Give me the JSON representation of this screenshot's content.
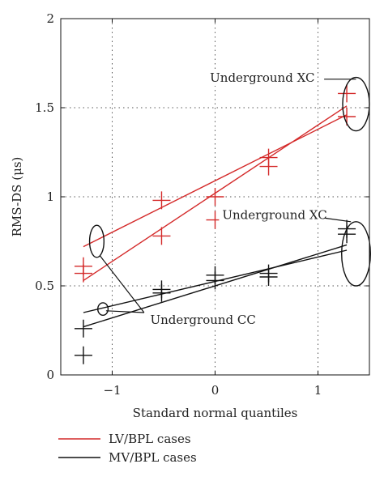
{
  "chart_data": {
    "type": "scatter",
    "xlabel": "Standard normal quantiles",
    "ylabel": "RMS-DS (μs)",
    "xlim": [
      -1.5,
      1.5
    ],
    "ylim": [
      0,
      2
    ],
    "x_ticks": [
      -1,
      0,
      1
    ],
    "x_tick_labels": [
      "−1",
      "0",
      "1"
    ],
    "y_ticks": [
      0,
      0.5,
      1,
      1.5,
      2
    ],
    "y_tick_labels": [
      "0",
      "0.5",
      "1",
      "1.5",
      "2"
    ],
    "grid": true,
    "legend_position": "below",
    "series": [
      {
        "name": "LV/BPL cases",
        "color": "#d42a2a",
        "marker": "plus",
        "points": [
          [
            -1.28,
            0.57
          ],
          [
            -1.28,
            0.61
          ],
          [
            -0.52,
            0.78
          ],
          [
            -0.52,
            0.98
          ],
          [
            0.0,
            0.87
          ],
          [
            0.0,
            1.0
          ],
          [
            0.52,
            1.17
          ],
          [
            0.52,
            1.22
          ],
          [
            1.28,
            1.45
          ],
          [
            1.28,
            1.58
          ]
        ],
        "fit_lines": [
          [
            [
              -1.28,
              0.53
            ],
            [
              1.28,
              1.51
            ]
          ],
          [
            [
              -1.28,
              0.72
            ],
            [
              1.28,
              1.46
            ]
          ]
        ]
      },
      {
        "name": "MV/BPL cases",
        "color": "#111111",
        "marker": "plus",
        "points": [
          [
            -1.28,
            0.11
          ],
          [
            -1.28,
            0.26
          ],
          [
            -0.52,
            0.46
          ],
          [
            -0.52,
            0.48
          ],
          [
            0.0,
            0.53
          ],
          [
            0.0,
            0.56
          ],
          [
            0.52,
            0.55
          ],
          [
            0.52,
            0.57
          ],
          [
            1.28,
            0.79
          ],
          [
            1.28,
            0.82
          ]
        ],
        "fit_lines": [
          [
            [
              -1.28,
              0.27
            ],
            [
              1.28,
              0.73
            ]
          ],
          [
            [
              -1.28,
              0.35
            ],
            [
              1.28,
              0.7
            ]
          ]
        ]
      }
    ],
    "annotations": [
      {
        "text": "Underground XC",
        "text_at": [
          -0.05,
          1.65
        ],
        "ellipse": {
          "center": [
            1.37,
            1.52
          ],
          "radii": [
            0.13,
            0.15
          ]
        },
        "leader": [
          [
            1.06,
            1.66
          ],
          [
            1.37,
            1.66
          ]
        ]
      },
      {
        "text": "Underground XC",
        "text_at": [
          0.07,
          0.88
        ],
        "ellipse": {
          "center": [
            1.37,
            0.68
          ],
          "radii": [
            0.14,
            0.18
          ]
        },
        "leader": [
          [
            1.07,
            0.88
          ],
          [
            1.32,
            0.86
          ]
        ]
      },
      {
        "text": "Underground CC",
        "text_at": [
          -0.63,
          0.29
        ],
        "ellipses": [
          {
            "center": [
              -1.15,
              0.75
            ],
            "radii": [
              0.07,
              0.09
            ]
          },
          {
            "center": [
              -1.09,
              0.37
            ],
            "radii": [
              0.05,
              0.035
            ]
          }
        ],
        "leaders": [
          [
            [
              -0.69,
              0.35
            ],
            [
              -1.12,
              0.67
            ]
          ],
          [
            [
              -0.69,
              0.35
            ],
            [
              -1.06,
              0.36
            ]
          ]
        ]
      }
    ]
  },
  "legend": {
    "items": [
      {
        "label": "LV/BPL cases",
        "color": "#d42a2a"
      },
      {
        "label": "MV/BPL cases",
        "color": "#111111"
      }
    ]
  }
}
